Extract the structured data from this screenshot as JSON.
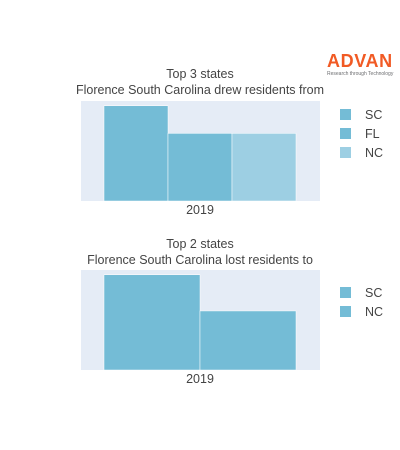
{
  "logo": {
    "word": "ADVAN",
    "tagline": "Research through Technology"
  },
  "colors": {
    "SC": "#74bcd6",
    "FL": "#74bcd6",
    "NC": "#9dcfe3",
    "NC2": "#74bcd6",
    "plot_bg": "#e5ecf6"
  },
  "chart_data": [
    {
      "type": "bar",
      "title": "Top 3 states",
      "subtitle": "Florence South Carolina drew residents from",
      "categories": [
        "2019"
      ],
      "series": [
        {
          "name": "SC",
          "values": [
            100
          ]
        },
        {
          "name": "FL",
          "values": [
            71
          ]
        },
        {
          "name": "NC",
          "values": [
            71
          ]
        }
      ],
      "ylim": [
        0,
        105
      ],
      "grid": false,
      "legend": "right"
    },
    {
      "type": "bar",
      "title": "Top 2 states",
      "subtitle": "Florence South Carolina lost residents to",
      "categories": [
        "2019"
      ],
      "series": [
        {
          "name": "SC",
          "values": [
            100
          ]
        },
        {
          "name": "NC",
          "values": [
            62
          ]
        }
      ],
      "ylim": [
        0,
        105
      ],
      "grid": false,
      "legend": "right"
    }
  ]
}
